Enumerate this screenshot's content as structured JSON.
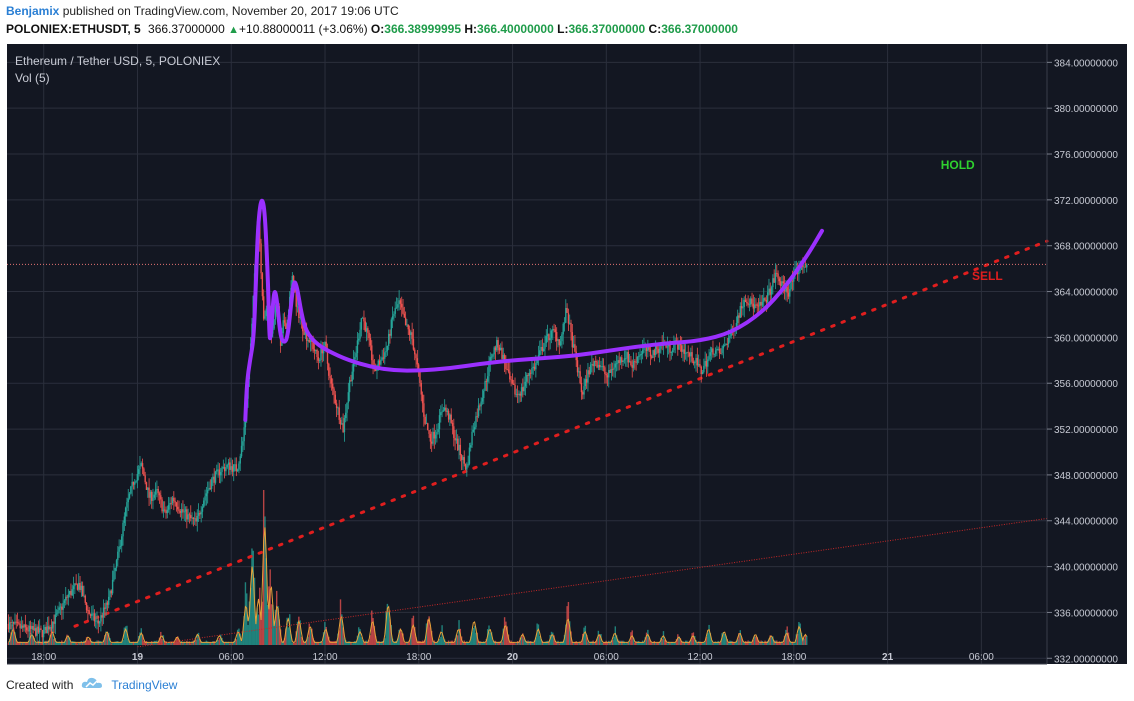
{
  "header": {
    "author": "Benjamix",
    "published_text": "published on TradingView.com, November 20, 2017 19:06 UTC"
  },
  "quote": {
    "symbol": "POLONIEX:ETHUSDT, 5",
    "price": "366.37000000",
    "change": "+10.88000011 (+3.06%)",
    "o_label": "O:",
    "o": "366.38999995",
    "h_label": "H:",
    "h": "366.40000000",
    "l_label": "L:",
    "l": "366.37000000",
    "c_label": "C:",
    "c": "366.37000000"
  },
  "chart_panel": {
    "title": "Ethereum / Tether USD, 5, POLONIEX",
    "volume_label": "Vol (5)",
    "annotation_hold": "HOLD",
    "annotation_sell": "SELL"
  },
  "footer": {
    "created_with": "Created with",
    "brand": "TradingView"
  },
  "colors": {
    "background": "#131722",
    "grid": "#2b2f3c",
    "up": "#26a69a",
    "down": "#ef5350",
    "volume_up": "#26a69a",
    "volume_down": "#ef5350",
    "volume_ma": "#e8a33a",
    "trend_dots": "#e01e1e",
    "trend_thin": "#c62828",
    "purple_drawing": "#9b30ff",
    "hold": "#2fd12f",
    "sell": "#e01e1e",
    "price_line": "#e57373"
  },
  "chart_data": {
    "type": "candlestick",
    "title": "Ethereum / Tether USD, 5, POLONIEX",
    "y_ticks": [
      "384.00000000",
      "380.00000000",
      "376.00000000",
      "372.00000000",
      "368.00000000",
      "364.00000000",
      "360.00000000",
      "356.00000000",
      "352.00000000",
      "348.00000000",
      "344.00000000",
      "340.00000000",
      "336.00000000",
      "332.00000000"
    ],
    "y_tick_values": [
      384,
      380,
      376,
      372,
      368,
      364,
      360,
      356,
      352,
      348,
      344,
      340,
      336,
      332
    ],
    "ylim": [
      331.5,
      385.6
    ],
    "x_ticks": [
      {
        "label": "18:00",
        "hours": 0
      },
      {
        "label": "19",
        "hours": 6
      },
      {
        "label": "06:00",
        "hours": 12
      },
      {
        "label": "12:00",
        "hours": 18
      },
      {
        "label": "18:00",
        "hours": 24
      },
      {
        "label": "20",
        "hours": 30
      },
      {
        "label": "06:00",
        "hours": 36
      },
      {
        "label": "12:00",
        "hours": 42
      },
      {
        "label": "18:00",
        "hours": 48
      },
      {
        "label": "21",
        "hours": 54
      },
      {
        "label": "06:00",
        "hours": 60
      }
    ],
    "xlim_hours": [
      -2.35,
      64.2
    ],
    "last_price": 366.37,
    "price_path": [
      [
        -2.3,
        335.0
      ],
      [
        -1.0,
        334.5
      ],
      [
        0.0,
        334.2
      ],
      [
        0.8,
        335.5
      ],
      [
        1.6,
        337.5
      ],
      [
        2.3,
        338.5
      ],
      [
        2.9,
        336.0
      ],
      [
        3.5,
        335.0
      ],
      [
        4.2,
        337.0
      ],
      [
        4.8,
        341.0
      ],
      [
        5.3,
        345.0
      ],
      [
        5.8,
        347.5
      ],
      [
        6.3,
        348.8
      ],
      [
        6.8,
        346.0
      ],
      [
        7.3,
        346.5
      ],
      [
        7.8,
        344.5
      ],
      [
        8.3,
        346.0
      ],
      [
        8.8,
        345.0
      ],
      [
        9.4,
        344.2
      ],
      [
        9.8,
        343.8
      ],
      [
        10.3,
        346.0
      ],
      [
        10.8,
        347.5
      ],
      [
        11.4,
        348.5
      ],
      [
        11.9,
        348.8
      ],
      [
        12.4,
        348.5
      ],
      [
        12.8,
        351.0
      ],
      [
        13.1,
        356.0
      ],
      [
        13.35,
        360.5
      ],
      [
        13.55,
        366.0
      ],
      [
        13.75,
        371.5
      ],
      [
        13.95,
        366.0
      ],
      [
        14.15,
        361.0
      ],
      [
        14.4,
        363.5
      ],
      [
        14.6,
        360.0
      ],
      [
        14.8,
        362.0
      ],
      [
        15.0,
        363.0
      ],
      [
        15.2,
        359.0
      ],
      [
        15.4,
        361.5
      ],
      [
        15.6,
        361.0
      ],
      [
        15.8,
        363.5
      ],
      [
        16.0,
        365.5
      ],
      [
        16.2,
        362.5
      ],
      [
        16.4,
        362.0
      ],
      [
        16.6,
        361.0
      ],
      [
        16.9,
        360.0
      ],
      [
        17.2,
        359.5
      ],
      [
        17.6,
        358.0
      ],
      [
        18.0,
        359.5
      ],
      [
        18.4,
        356.0
      ],
      [
        18.8,
        354.0
      ],
      [
        19.2,
        352.0
      ],
      [
        19.6,
        356.0
      ],
      [
        20.0,
        358.5
      ],
      [
        20.4,
        362.0
      ],
      [
        20.8,
        360.0
      ],
      [
        21.2,
        357.0
      ],
      [
        21.6,
        358.0
      ],
      [
        22.0,
        359.0
      ],
      [
        22.4,
        362.0
      ],
      [
        22.8,
        363.0
      ],
      [
        23.2,
        361.0
      ],
      [
        23.6,
        360.0
      ],
      [
        24.0,
        357.0
      ],
      [
        24.4,
        353.0
      ],
      [
        24.8,
        351.0
      ],
      [
        25.2,
        352.0
      ],
      [
        25.6,
        354.0
      ],
      [
        26.0,
        353.0
      ],
      [
        26.4,
        351.0
      ],
      [
        26.8,
        349.5
      ],
      [
        27.1,
        348.5
      ],
      [
        27.5,
        352.0
      ],
      [
        27.9,
        354.0
      ],
      [
        28.3,
        356.0
      ],
      [
        28.7,
        358.5
      ],
      [
        29.1,
        359.5
      ],
      [
        29.5,
        358.0
      ],
      [
        29.9,
        356.0
      ],
      [
        30.3,
        355.0
      ],
      [
        30.7,
        355.5
      ],
      [
        31.1,
        357.0
      ],
      [
        31.5,
        357.5
      ],
      [
        31.9,
        359.0
      ],
      [
        32.3,
        360.0
      ],
      [
        32.7,
        360.5
      ],
      [
        33.1,
        359.5
      ],
      [
        33.5,
        362.5
      ],
      [
        33.8,
        360.0
      ],
      [
        34.1,
        358.0
      ],
      [
        34.5,
        355.0
      ],
      [
        34.9,
        357.0
      ],
      [
        35.3,
        358.0
      ],
      [
        35.7,
        357.5
      ],
      [
        36.1,
        356.5
      ],
      [
        36.5,
        357.5
      ],
      [
        36.9,
        358.0
      ],
      [
        37.3,
        358.5
      ],
      [
        37.7,
        357.5
      ],
      [
        38.1,
        358.5
      ],
      [
        38.5,
        359.0
      ],
      [
        38.9,
        358.5
      ],
      [
        39.3,
        359.0
      ],
      [
        39.7,
        359.5
      ],
      [
        40.1,
        359.0
      ],
      [
        40.5,
        359.5
      ],
      [
        40.9,
        359.0
      ],
      [
        41.3,
        358.5
      ],
      [
        41.7,
        358.0
      ],
      [
        42.1,
        357.0
      ],
      [
        42.5,
        358.0
      ],
      [
        42.9,
        359.0
      ],
      [
        43.3,
        358.5
      ],
      [
        43.7,
        359.5
      ],
      [
        44.1,
        360.5
      ],
      [
        44.5,
        362.0
      ],
      [
        44.9,
        363.5
      ],
      [
        45.3,
        363.0
      ],
      [
        45.7,
        362.5
      ],
      [
        46.1,
        363.0
      ],
      [
        46.5,
        364.0
      ],
      [
        46.9,
        365.5
      ],
      [
        47.3,
        364.5
      ],
      [
        47.7,
        364.0
      ],
      [
        48.1,
        365.5
      ],
      [
        48.5,
        366.2
      ],
      [
        48.8,
        366.4
      ]
    ],
    "volume_series": {
      "name": "Vol (5)",
      "ylim": [
        0,
        1.0
      ],
      "peaks": [
        [
          -2.0,
          0.12
        ],
        [
          -0.8,
          0.08
        ],
        [
          0.5,
          0.1
        ],
        [
          1.5,
          0.07
        ],
        [
          2.8,
          0.06
        ],
        [
          4.0,
          0.1
        ],
        [
          5.2,
          0.12
        ],
        [
          6.2,
          0.09
        ],
        [
          7.5,
          0.07
        ],
        [
          8.5,
          0.06
        ],
        [
          9.8,
          0.08
        ],
        [
          11.2,
          0.07
        ],
        [
          12.4,
          0.1
        ],
        [
          12.9,
          0.3
        ],
        [
          13.3,
          0.6
        ],
        [
          13.7,
          0.35
        ],
        [
          14.1,
          0.9
        ],
        [
          14.5,
          0.45
        ],
        [
          14.9,
          0.3
        ],
        [
          15.6,
          0.2
        ],
        [
          16.3,
          0.18
        ],
        [
          17.0,
          0.14
        ],
        [
          18.0,
          0.12
        ],
        [
          19.0,
          0.22
        ],
        [
          20.2,
          0.1
        ],
        [
          21.0,
          0.18
        ],
        [
          22.0,
          0.3
        ],
        [
          22.8,
          0.12
        ],
        [
          23.6,
          0.15
        ],
        [
          24.6,
          0.2
        ],
        [
          25.4,
          0.1
        ],
        [
          26.5,
          0.12
        ],
        [
          27.5,
          0.18
        ],
        [
          28.5,
          0.12
        ],
        [
          29.5,
          0.15
        ],
        [
          30.6,
          0.08
        ],
        [
          31.6,
          0.12
        ],
        [
          32.5,
          0.08
        ],
        [
          33.5,
          0.2
        ],
        [
          34.6,
          0.1
        ],
        [
          35.5,
          0.08
        ],
        [
          36.5,
          0.09
        ],
        [
          37.6,
          0.07
        ],
        [
          38.6,
          0.08
        ],
        [
          39.6,
          0.07
        ],
        [
          40.6,
          0.06
        ],
        [
          41.5,
          0.07
        ],
        [
          42.5,
          0.12
        ],
        [
          43.5,
          0.1
        ],
        [
          44.5,
          0.09
        ],
        [
          45.5,
          0.08
        ],
        [
          46.5,
          0.07
        ],
        [
          47.5,
          0.09
        ],
        [
          48.3,
          0.14
        ],
        [
          48.7,
          0.08
        ]
      ]
    },
    "trendlines": [
      {
        "style": "dotted",
        "from": [
          2.0,
          334.8
        ],
        "to": [
          64.2,
          368.4
        ]
      },
      {
        "style": "thin",
        "from": [
          6.0,
          333.0
        ],
        "to": [
          64.2,
          344.2
        ]
      }
    ],
    "purple_drawing_points": [
      [
        12.9,
        352.8
      ],
      [
        13.0,
        356.0
      ],
      [
        13.2,
        358.0
      ],
      [
        13.45,
        360.0
      ],
      [
        13.6,
        366.0
      ],
      [
        13.75,
        370.5
      ],
      [
        13.95,
        372.3
      ],
      [
        14.15,
        371.0
      ],
      [
        14.35,
        365.0
      ],
      [
        14.45,
        359.5
      ],
      [
        14.55,
        360.5
      ],
      [
        14.75,
        364.5
      ],
      [
        14.95,
        363.0
      ],
      [
        15.15,
        360.0
      ],
      [
        15.4,
        359.5
      ],
      [
        15.6,
        360.0
      ],
      [
        15.8,
        362.5
      ],
      [
        16.0,
        365.0
      ],
      [
        16.2,
        364.5
      ],
      [
        16.5,
        362.0
      ],
      [
        16.8,
        360.5
      ],
      [
        17.4,
        359.5
      ],
      [
        18.2,
        358.8
      ],
      [
        19.5,
        358.0
      ],
      [
        21.0,
        357.4
      ],
      [
        22.5,
        357.1
      ],
      [
        24.0,
        357.1
      ],
      [
        26.0,
        357.3
      ],
      [
        28.0,
        357.7
      ],
      [
        30.0,
        358.0
      ],
      [
        32.0,
        358.2
      ],
      [
        34.0,
        358.4
      ],
      [
        36.0,
        358.8
      ],
      [
        38.0,
        359.2
      ],
      [
        40.0,
        359.5
      ],
      [
        42.0,
        359.7
      ],
      [
        44.0,
        360.4
      ],
      [
        46.0,
        362.2
      ],
      [
        47.5,
        364.5
      ],
      [
        48.8,
        367.0
      ],
      [
        49.8,
        369.3
      ]
    ],
    "annotations": [
      {
        "text": "HOLD",
        "x_hours": 57.4,
        "y": 374.7
      },
      {
        "text": "SELL",
        "x_hours": 59.4,
        "y": 365.0
      }
    ]
  }
}
